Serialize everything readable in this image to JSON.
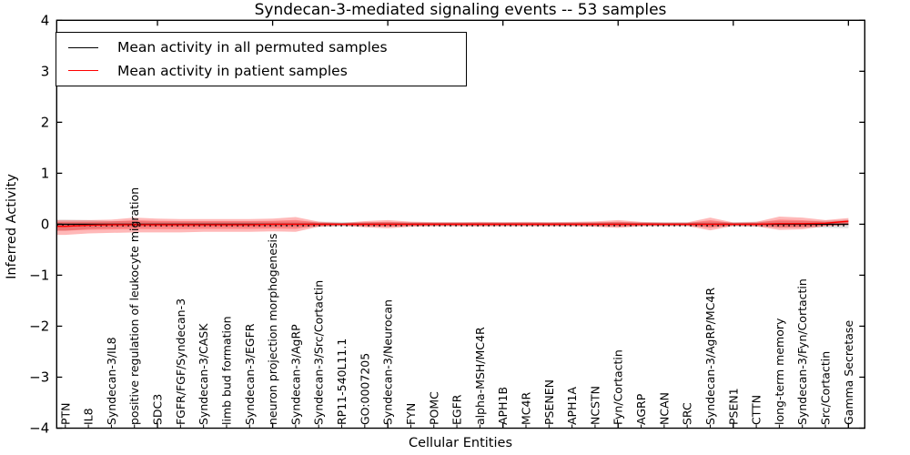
{
  "figure": {
    "title": "Syndecan-3-mediated signaling events -- 53 samples",
    "xlabel": "Cellular Entities",
    "ylabel": "Inferred Activity"
  },
  "legend": {
    "items": [
      {
        "label": "Mean activity in all permuted samples",
        "color": "#000000"
      },
      {
        "label": "Mean activity in patient samples",
        "color": "#ff0000"
      }
    ],
    "position": "upper left"
  },
  "chart_data": {
    "type": "line",
    "title": "Syndecan-3-mediated signaling events -- 53 samples",
    "xlabel": "Cellular Entities",
    "ylabel": "Inferred Activity",
    "ylim": [
      -4,
      4
    ],
    "yticks": [
      -4,
      -3,
      -2,
      -1,
      0,
      1,
      2,
      3,
      4
    ],
    "grid": false,
    "legend_position": "upper left",
    "categories": [
      "PTN",
      "IL8",
      "Syndecan-3/IL8",
      "positive regulation of leukocyte migration",
      "SDC3",
      "FGFR/FGF/Syndecan-3",
      "Syndecan-3/CASK",
      "limb bud formation",
      "Syndecan-3/EGFR",
      "neuron projection morphogenesis",
      "Syndecan-3/AgRP",
      "Syndecan-3/Src/Cortactin",
      "RP11-540L11.1",
      "GO:0007205",
      "Syndecan-3/Neurocan",
      "FYN",
      "POMC",
      "EGFR",
      "alpha-MSH/MC4R",
      "APH1B",
      "MC4R",
      "PSENEN",
      "APH1A",
      "NCSTN",
      "Fyn/Cortactin",
      "AGRP",
      "NCAN",
      "SRC",
      "Syndecan-3/AgRP/MC4R",
      "PSEN1",
      "CTTN",
      "long-term memory",
      "Syndecan-3/Fyn/Cortactin",
      "Src/Cortactin",
      "Gamma Secretase"
    ],
    "series": [
      {
        "name": "Mean activity in all permuted samples",
        "color": "#000000",
        "style": "solid",
        "values": [
          0,
          0,
          0,
          0,
          0,
          0,
          0,
          0,
          0,
          0,
          0,
          0,
          0,
          0,
          0,
          0,
          0,
          0,
          0,
          0,
          0,
          0,
          0,
          0,
          0,
          0,
          0,
          0,
          0,
          0,
          0,
          0,
          0,
          0,
          0
        ]
      },
      {
        "name": "zero reference",
        "color": "#000000",
        "style": "dotted",
        "values": [
          0,
          0,
          0,
          0,
          0,
          0,
          0,
          0,
          0,
          0,
          0,
          0,
          0,
          0,
          0,
          0,
          0,
          0,
          0,
          0,
          0,
          0,
          0,
          0,
          0,
          0,
          0,
          0,
          0,
          0,
          0,
          0,
          0,
          0,
          0
        ]
      },
      {
        "name": "Mean activity in patient samples",
        "color": "#ff0000",
        "style": "solid",
        "values": [
          -0.04,
          -0.02,
          -0.01,
          -0.01,
          -0.01,
          -0.01,
          -0.01,
          -0.01,
          -0.01,
          0,
          0,
          0,
          0,
          0,
          0,
          0,
          0,
          0,
          0,
          0,
          0,
          0,
          0,
          0,
          0,
          0,
          0,
          0,
          0,
          0,
          0,
          0.01,
          0.01,
          0.02,
          0.06
        ]
      }
    ],
    "bands": [
      {
        "name": "permuted activity spread",
        "color": "#999999",
        "opacity": 0.3,
        "upper": [
          0.09,
          0.08,
          0.06,
          0.06,
          0.05,
          0.05,
          0.05,
          0.05,
          0.05,
          0.05,
          0.05,
          0.05,
          0.045,
          0.04,
          0.04,
          0.04,
          0.04,
          0.04,
          0.04,
          0.04,
          0.04,
          0.04,
          0.04,
          0.04,
          0.045,
          0.04,
          0.04,
          0.04,
          0.05,
          0.04,
          0.05,
          0.06,
          0.06,
          0.07,
          0.09
        ],
        "lower": [
          -0.13,
          -0.09,
          -0.07,
          -0.06,
          -0.05,
          -0.05,
          -0.05,
          -0.05,
          -0.05,
          -0.05,
          -0.05,
          -0.05,
          -0.045,
          -0.04,
          -0.04,
          -0.04,
          -0.04,
          -0.04,
          -0.04,
          -0.04,
          -0.04,
          -0.04,
          -0.04,
          -0.04,
          -0.045,
          -0.04,
          -0.04,
          -0.04,
          -0.05,
          -0.04,
          -0.05,
          -0.06,
          -0.06,
          -0.07,
          -0.08
        ]
      },
      {
        "name": "patient activity spread",
        "color": "#ff0000",
        "opacity": 0.28,
        "upper": [
          0.08,
          0.08,
          0.09,
          0.13,
          0.11,
          0.1,
          0.1,
          0.1,
          0.1,
          0.11,
          0.14,
          0.05,
          0.025,
          0.06,
          0.08,
          0.05,
          0.04,
          0.04,
          0.045,
          0.04,
          0.045,
          0.04,
          0.045,
          0.055,
          0.08,
          0.045,
          0.035,
          0.035,
          0.13,
          0.035,
          0.045,
          0.15,
          0.13,
          0.08,
          0.12
        ],
        "lower": [
          -0.21,
          -0.18,
          -0.17,
          -0.16,
          -0.16,
          -0.16,
          -0.15,
          -0.15,
          -0.15,
          -0.14,
          -0.15,
          -0.05,
          -0.03,
          -0.06,
          -0.08,
          -0.05,
          -0.04,
          -0.04,
          -0.045,
          -0.04,
          -0.04,
          -0.04,
          -0.04,
          -0.05,
          -0.07,
          -0.04,
          -0.035,
          -0.035,
          -0.12,
          -0.035,
          -0.045,
          -0.11,
          -0.1,
          -0.04,
          -0.015
        ],
        "inner_scale": 0.6
      }
    ]
  }
}
